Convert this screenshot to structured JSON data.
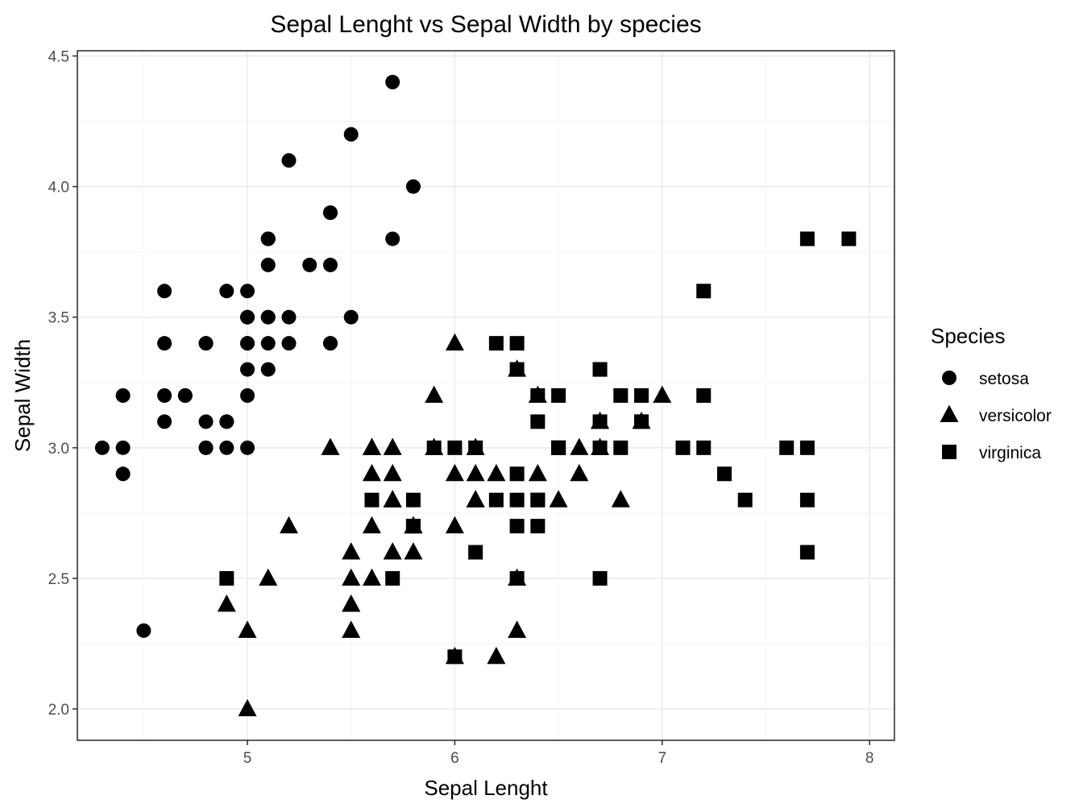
{
  "chart_data": {
    "type": "scatter",
    "title": "Sepal Lenght vs Sepal Width by species",
    "xlabel": "Sepal Lenght",
    "ylabel": "Sepal Width",
    "xlim": [
      4.18,
      8.12
    ],
    "ylim": [
      1.88,
      4.52
    ],
    "x_ticks": [
      5,
      6,
      7,
      8
    ],
    "x_tick_labels": [
      "5",
      "6",
      "7",
      "8"
    ],
    "y_ticks": [
      2.0,
      2.5,
      3.0,
      3.5,
      4.0,
      4.5
    ],
    "y_tick_labels": [
      "2.0",
      "2.5",
      "3.0",
      "3.5",
      "4.0",
      "4.5"
    ],
    "grid": true,
    "legend": {
      "title": "Species",
      "position": "right"
    },
    "series": [
      {
        "name": "setosa",
        "shape": "circle",
        "color": "#000000",
        "points": [
          [
            5.1,
            3.5
          ],
          [
            4.9,
            3.0
          ],
          [
            4.7,
            3.2
          ],
          [
            4.6,
            3.1
          ],
          [
            5.0,
            3.6
          ],
          [
            5.4,
            3.9
          ],
          [
            4.6,
            3.4
          ],
          [
            5.0,
            3.4
          ],
          [
            4.4,
            2.9
          ],
          [
            4.9,
            3.1
          ],
          [
            5.4,
            3.7
          ],
          [
            4.8,
            3.4
          ],
          [
            4.8,
            3.0
          ],
          [
            4.3,
            3.0
          ],
          [
            5.8,
            4.0
          ],
          [
            5.7,
            4.4
          ],
          [
            5.4,
            3.9
          ],
          [
            5.1,
            3.5
          ],
          [
            5.7,
            3.8
          ],
          [
            5.1,
            3.8
          ],
          [
            5.4,
            3.4
          ],
          [
            5.1,
            3.7
          ],
          [
            4.6,
            3.6
          ],
          [
            5.1,
            3.3
          ],
          [
            4.8,
            3.4
          ],
          [
            5.0,
            3.0
          ],
          [
            5.0,
            3.4
          ],
          [
            5.2,
            3.5
          ],
          [
            5.2,
            3.4
          ],
          [
            4.7,
            3.2
          ],
          [
            4.8,
            3.1
          ],
          [
            5.4,
            3.4
          ],
          [
            5.2,
            4.1
          ],
          [
            5.5,
            4.2
          ],
          [
            4.9,
            3.1
          ],
          [
            5.0,
            3.2
          ],
          [
            5.5,
            3.5
          ],
          [
            4.9,
            3.6
          ],
          [
            4.4,
            3.0
          ],
          [
            5.1,
            3.4
          ],
          [
            5.0,
            3.5
          ],
          [
            4.5,
            2.3
          ],
          [
            4.4,
            3.2
          ],
          [
            5.0,
            3.5
          ],
          [
            5.1,
            3.8
          ],
          [
            4.8,
            3.0
          ],
          [
            5.1,
            3.8
          ],
          [
            4.6,
            3.2
          ],
          [
            5.3,
            3.7
          ],
          [
            5.0,
            3.3
          ]
        ]
      },
      {
        "name": "versicolor",
        "shape": "triangle",
        "color": "#000000",
        "points": [
          [
            7.0,
            3.2
          ],
          [
            6.4,
            3.2
          ],
          [
            6.9,
            3.1
          ],
          [
            5.5,
            2.3
          ],
          [
            6.5,
            2.8
          ],
          [
            5.7,
            2.8
          ],
          [
            6.3,
            3.3
          ],
          [
            4.9,
            2.4
          ],
          [
            6.6,
            2.9
          ],
          [
            5.2,
            2.7
          ],
          [
            5.0,
            2.0
          ],
          [
            5.9,
            3.0
          ],
          [
            6.0,
            2.2
          ],
          [
            6.1,
            2.9
          ],
          [
            5.6,
            2.9
          ],
          [
            6.7,
            3.1
          ],
          [
            5.6,
            3.0
          ],
          [
            5.8,
            2.7
          ],
          [
            6.2,
            2.2
          ],
          [
            5.6,
            2.5
          ],
          [
            5.9,
            3.2
          ],
          [
            6.1,
            2.8
          ],
          [
            6.3,
            2.5
          ],
          [
            6.1,
            2.8
          ],
          [
            6.4,
            2.9
          ],
          [
            6.6,
            3.0
          ],
          [
            6.8,
            2.8
          ],
          [
            6.7,
            3.0
          ],
          [
            6.0,
            2.9
          ],
          [
            5.7,
            2.6
          ],
          [
            5.5,
            2.4
          ],
          [
            5.5,
            2.4
          ],
          [
            5.8,
            2.7
          ],
          [
            6.0,
            2.7
          ],
          [
            5.4,
            3.0
          ],
          [
            6.0,
            3.4
          ],
          [
            6.7,
            3.1
          ],
          [
            6.3,
            2.3
          ],
          [
            5.6,
            3.0
          ],
          [
            5.5,
            2.5
          ],
          [
            5.5,
            2.6
          ],
          [
            6.1,
            3.0
          ],
          [
            5.8,
            2.6
          ],
          [
            5.0,
            2.3
          ],
          [
            5.6,
            2.7
          ],
          [
            5.7,
            3.0
          ],
          [
            5.7,
            2.9
          ],
          [
            6.2,
            2.9
          ],
          [
            5.1,
            2.5
          ],
          [
            5.7,
            2.8
          ]
        ]
      },
      {
        "name": "virginica",
        "shape": "square",
        "color": "#000000",
        "points": [
          [
            6.3,
            3.3
          ],
          [
            5.8,
            2.7
          ],
          [
            7.1,
            3.0
          ],
          [
            6.3,
            2.9
          ],
          [
            6.5,
            3.0
          ],
          [
            7.6,
            3.0
          ],
          [
            4.9,
            2.5
          ],
          [
            7.3,
            2.9
          ],
          [
            6.7,
            2.5
          ],
          [
            7.2,
            3.6
          ],
          [
            6.5,
            3.2
          ],
          [
            6.4,
            2.7
          ],
          [
            6.8,
            3.0
          ],
          [
            5.7,
            2.5
          ],
          [
            5.8,
            2.8
          ],
          [
            6.4,
            3.2
          ],
          [
            6.5,
            3.0
          ],
          [
            7.7,
            3.8
          ],
          [
            7.7,
            2.6
          ],
          [
            6.0,
            2.2
          ],
          [
            6.9,
            3.2
          ],
          [
            5.6,
            2.8
          ],
          [
            7.7,
            2.8
          ],
          [
            6.3,
            2.7
          ],
          [
            6.7,
            3.3
          ],
          [
            7.2,
            3.2
          ],
          [
            6.2,
            2.8
          ],
          [
            6.1,
            3.0
          ],
          [
            6.4,
            2.8
          ],
          [
            7.2,
            3.0
          ],
          [
            7.4,
            2.8
          ],
          [
            7.9,
            3.8
          ],
          [
            6.4,
            2.8
          ],
          [
            6.3,
            2.8
          ],
          [
            6.1,
            2.6
          ],
          [
            7.7,
            3.0
          ],
          [
            6.3,
            3.4
          ],
          [
            6.4,
            3.1
          ],
          [
            6.0,
            3.0
          ],
          [
            6.9,
            3.1
          ],
          [
            6.7,
            3.1
          ],
          [
            6.9,
            3.1
          ],
          [
            5.8,
            2.7
          ],
          [
            6.8,
            3.2
          ],
          [
            6.7,
            3.3
          ],
          [
            6.7,
            3.0
          ],
          [
            6.3,
            2.5
          ],
          [
            6.5,
            3.0
          ],
          [
            6.2,
            3.4
          ],
          [
            5.9,
            3.0
          ]
        ]
      }
    ]
  }
}
